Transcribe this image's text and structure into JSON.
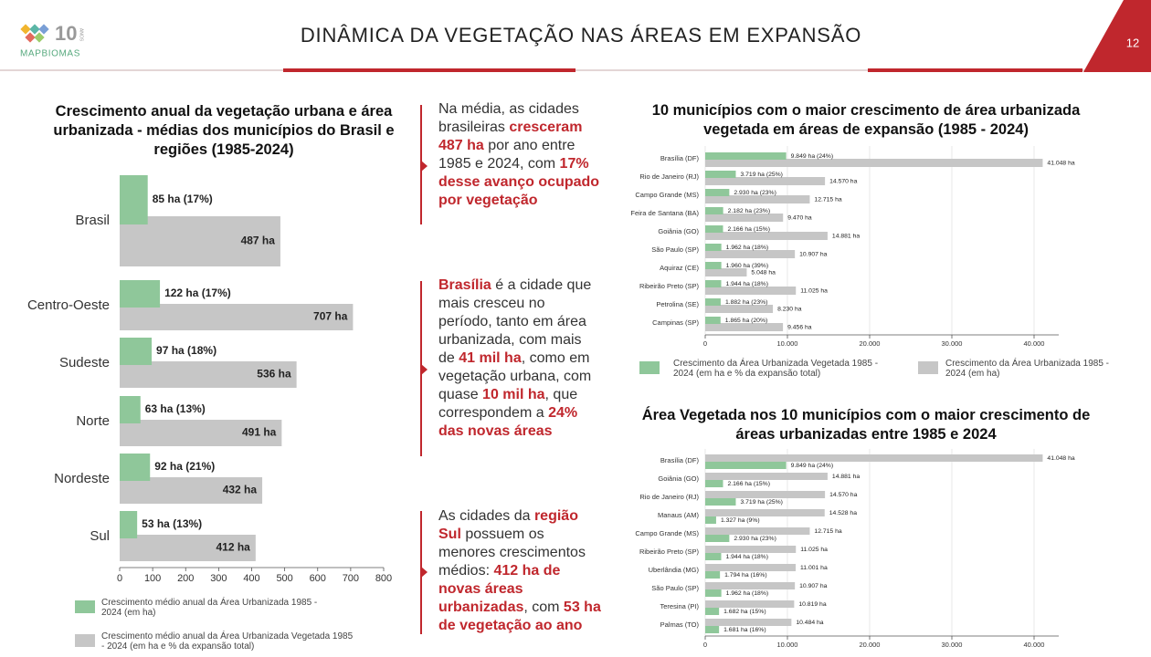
{
  "header": {
    "title": "DINÂMICA DA VEGETAÇÃO NAS ÁREAS EM EXPANSÃO",
    "page": "12"
  },
  "logo": {
    "number": "10",
    "label": "ANOS",
    "brand": "MAPBIOMAS"
  },
  "paragraphs": [
    {
      "runs": [
        {
          "text": "Na média, as cidades brasileiras ",
          "em": false
        },
        {
          "text": "cresceram 487 ha",
          "em": true
        },
        {
          "text": " por ano entre 1985 e 2024, com ",
          "em": false
        },
        {
          "text": "17% desse avanço ocupado por vegetação",
          "em": true
        }
      ]
    },
    {
      "runs": [
        {
          "text": "Brasília",
          "em": true
        },
        {
          "text": " é a cidade que mais cresceu no período, tanto em área urbanizada, com mais de ",
          "em": false
        },
        {
          "text": "41 mil ha",
          "em": true
        },
        {
          "text": ", como em vegetação urbana,  com quase ",
          "em": false
        },
        {
          "text": "10 mil ha",
          "em": true
        },
        {
          "text": ", que correspondem a ",
          "em": false
        },
        {
          "text": "24% das novas áreas",
          "em": true
        }
      ]
    },
    {
      "runs": [
        {
          "text": "As cidades da ",
          "em": false
        },
        {
          "text": "região Sul",
          "em": true
        },
        {
          "text": " possuem os menores crescimentos médios: ",
          "em": false
        },
        {
          "text": "412 ha de novas áreas urbanizadas",
          "em": true
        },
        {
          "text": ", com ",
          "em": false
        },
        {
          "text": "53 ha de vegetação ao ano",
          "em": true
        }
      ]
    }
  ],
  "chart_data": [
    {
      "type": "hbar",
      "title": "Crescimento anual da vegetação urbana e área urbanizada - médias dos municípios do Brasil e regiões (1985-2024)",
      "categories": [
        "Brasil",
        "Centro-Oeste",
        "Sudeste",
        "Norte",
        "Nordeste",
        "Sul"
      ],
      "series": [
        {
          "name": "Crescimento médio anual da Área Urbanizada 1985 - 2024 (em ha)",
          "color": "#8fc79a",
          "values": [
            85,
            122,
            97,
            63,
            92,
            53
          ],
          "value_labels": [
            "85 ha (17%)",
            "122 ha (17%)",
            "97 ha (18%)",
            "63 ha (13%)",
            "92 ha (21%)",
            "53 ha (13%)"
          ]
        },
        {
          "name": "Crescimento médio anual da Área Urbanizada Vegetada 1985 - 2024 (em ha e % da expansão total)",
          "color": "#c6c6c6",
          "values": [
            487,
            707,
            536,
            491,
            432,
            412
          ],
          "value_labels": [
            "487 ha",
            "707 ha",
            "536 ha",
            "491 ha",
            "432 ha",
            "412 ha"
          ]
        }
      ],
      "xlim": [
        0,
        800
      ],
      "xticks": [
        0,
        100,
        200,
        300,
        400,
        500,
        600,
        700,
        800
      ],
      "grid": false
    },
    {
      "type": "hbar",
      "title": "10 municípios com o maior crescimento de área urbanizada vegetada em áreas de expansão (1985 - 2024)",
      "categories": [
        "Brasília (DF)",
        "Rio de Janeiro (RJ)",
        "Campo Grande (MS)",
        "Feira de Santana (BA)",
        "Goiânia (GO)",
        "São Paulo (SP)",
        "Aquiraz (CE)",
        "Ribeirão Preto (SP)",
        "Petrolina (SE)",
        "Campinas (SP)"
      ],
      "series": [
        {
          "name": "Crescimento da Área Urbanizada Vegetada 1985 - 2024 (em ha e % da expansão total)",
          "color": "#8fc79a",
          "values": [
            9849,
            3719,
            2930,
            2182,
            2166,
            1962,
            1960,
            1944,
            1882,
            1865
          ],
          "value_labels": [
            "9.849 ha (24%)",
            "3.719 ha (25%)",
            "2.930 ha (23%)",
            "2.182 ha (23%)",
            "2.166 ha (15%)",
            "1.962 ha (18%)",
            "1.960 ha (39%)",
            "1.944 ha (18%)",
            "1.882 ha (23%)",
            "1.865 ha (20%)"
          ]
        },
        {
          "name": "Crescimento da Área Urbanizada 1985 - 2024 (em ha)",
          "color": "#c6c6c6",
          "values": [
            41048,
            14570,
            12715,
            9470,
            14881,
            10907,
            5048,
            11025,
            8230,
            9456
          ],
          "value_labels": [
            "41.048 ha",
            "14.570 ha",
            "12.715 ha",
            "9.470 ha",
            "14.881 ha",
            "10.907 ha",
            "5.048 ha",
            "11.025 ha",
            "8.230 ha",
            "9.456 ha"
          ]
        }
      ],
      "xlim": [
        0,
        43000
      ],
      "xticks": [
        0,
        {
          "value": 10000,
          "label": "10.000"
        },
        {
          "value": 20000,
          "label": "20.000"
        },
        {
          "value": 30000,
          "label": "30.000"
        },
        {
          "value": 40000,
          "label": "40.000"
        }
      ],
      "grid": true
    },
    {
      "type": "hbar",
      "title": "Área Vegetada nos 10 municípios com o maior crescimento de áreas urbanizadas entre 1985 e 2024",
      "categories": [
        "Brasília (DF)",
        "Goiânia (GO)",
        "Rio de Janeiro (RJ)",
        "Manaus (AM)",
        "Campo Grande (MS)",
        "Ribeirão Preto (SP)",
        "Uberlândia (MG)",
        "São Paulo (SP)",
        "Teresina (PI)",
        "Palmas (TO)"
      ],
      "series": [
        {
          "color": "#c6c6c6",
          "values": [
            41048,
            14881,
            14570,
            14528,
            12715,
            11025,
            11001,
            10907,
            10819,
            10484
          ],
          "value_labels": [
            "41.048 ha",
            "14.881 ha",
            "14.570 ha",
            "14.528 ha",
            "12.715 ha",
            "11.025 ha",
            "11.001 ha",
            "10.907 ha",
            "10.819 ha",
            "10.484 ha"
          ]
        },
        {
          "color": "#8fc79a",
          "values": [
            9849,
            2166,
            3719,
            1327,
            2930,
            1944,
            1794,
            1962,
            1682,
            1681
          ],
          "value_labels": [
            "9.849 ha (24%)",
            "2.166 ha (15%)",
            "3.719 ha (25%)",
            "1.327 ha (9%)",
            "2.930 ha (23%)",
            "1.944 ha (18%)",
            "1.794 ha (16%)",
            "1.962 ha (18%)",
            "1.682 ha (15%)",
            "1.681 ha (16%)"
          ]
        }
      ],
      "xlim": [
        0,
        43000
      ],
      "xticks": [
        0,
        {
          "value": 10000,
          "label": "10.000"
        },
        {
          "value": 20000,
          "label": "20.000"
        },
        {
          "value": 30000,
          "label": "30.000"
        },
        {
          "value": 40000,
          "label": "40.000"
        }
      ],
      "grid": true
    }
  ]
}
